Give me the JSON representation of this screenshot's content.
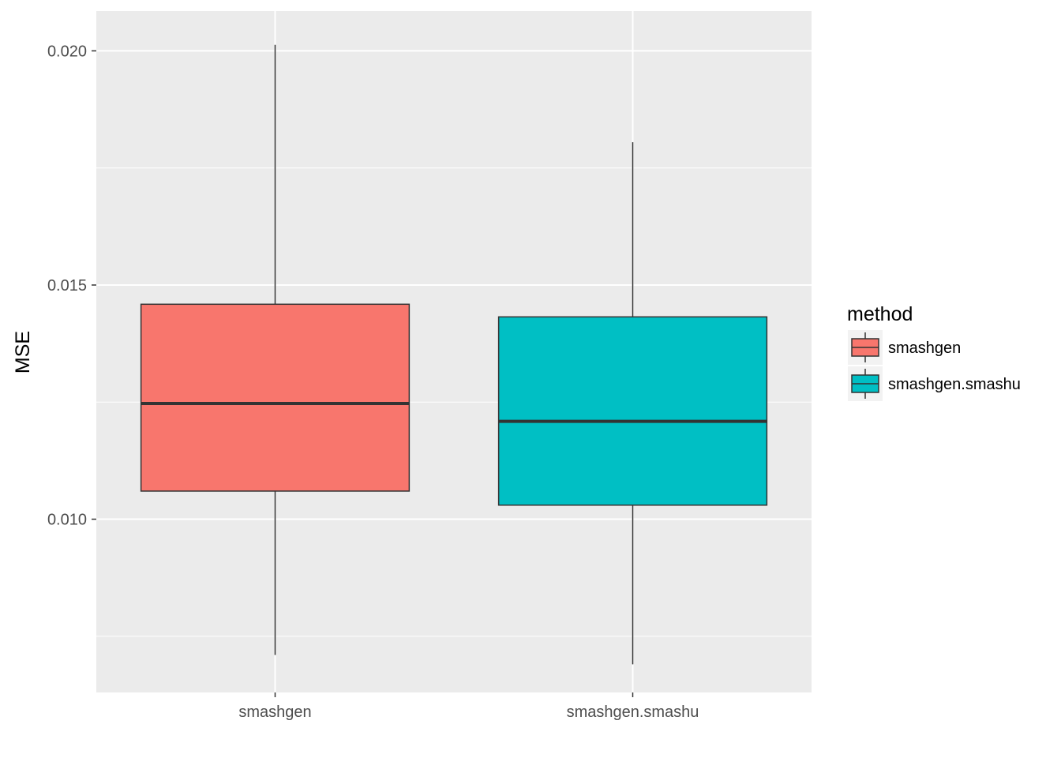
{
  "chart_data": {
    "type": "boxplot",
    "categories": [
      "smashgen",
      "smashgen.smashu"
    ],
    "series": [
      {
        "name": "smashgen",
        "color": "#F8766D",
        "min": 0.0071,
        "q1": 0.0106,
        "median": 0.01247,
        "q3": 0.01459,
        "max": 0.02013
      },
      {
        "name": "smashgen.smashu",
        "color": "#00BFC4",
        "min": 0.0069,
        "q1": 0.0103,
        "median": 0.01209,
        "q3": 0.01432,
        "max": 0.01805
      }
    ],
    "ylabel": "MSE",
    "xlabel": "",
    "ylim": [
      0.0063,
      0.02085
    ],
    "yticks": [
      0.01,
      0.015,
      0.02
    ],
    "ytick_labels": [
      "0.010",
      "0.015",
      "0.020"
    ],
    "grid": true,
    "panel_background": "#EBEBEB",
    "legend": {
      "title": "method",
      "placement": "right",
      "entries": [
        "smashgen",
        "smashgen.smashu"
      ]
    }
  }
}
